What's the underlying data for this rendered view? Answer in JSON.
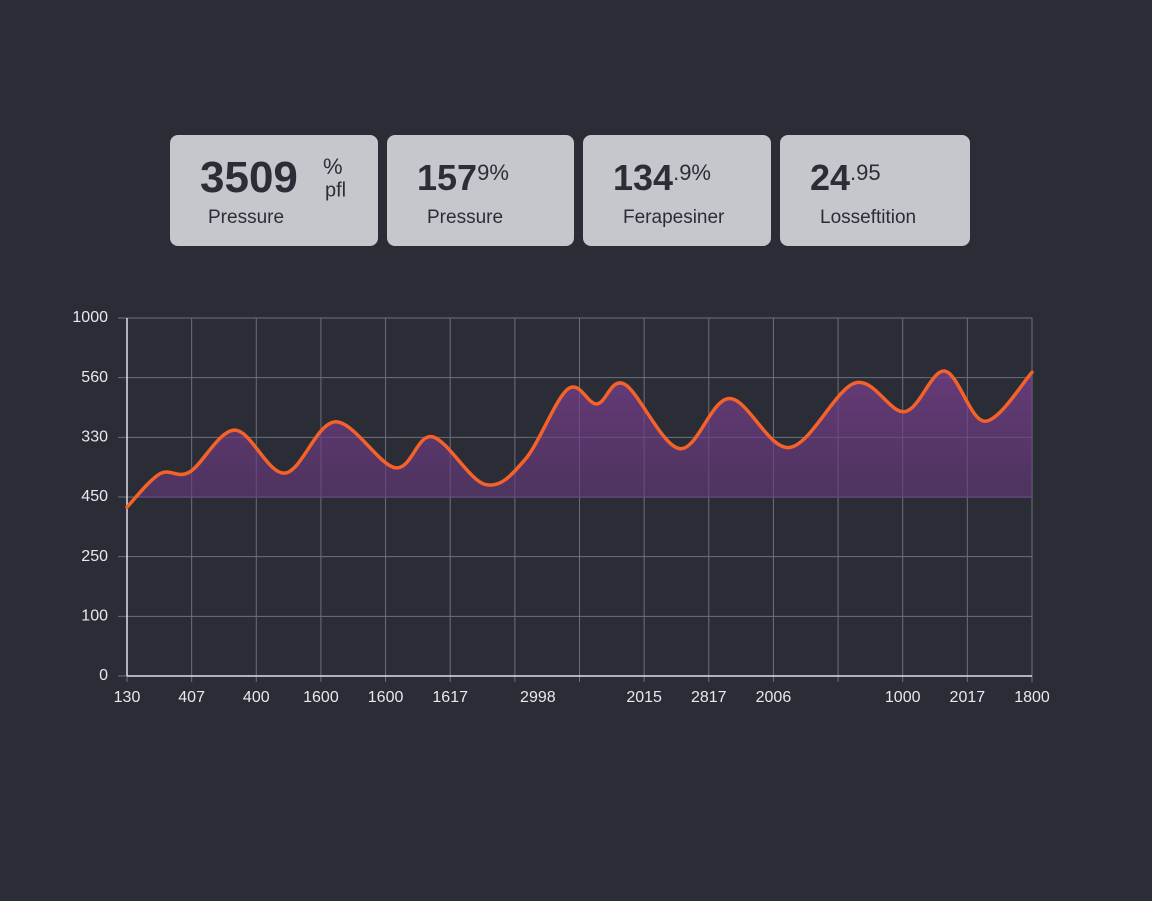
{
  "cards": [
    {
      "main": "3509",
      "sup": "%",
      "sub": "pfl",
      "label": "Pressure"
    },
    {
      "main": "157",
      "sup": "9%",
      "label": "Pressure"
    },
    {
      "main": "134",
      "sup": ".9%",
      "label": "Ferapesiner"
    },
    {
      "main": "24",
      "sup": ".95",
      "label": "Losseftition"
    }
  ],
  "chart_data": {
    "type": "area",
    "x": [
      0,
      0.51,
      0.97,
      1.67,
      2.44,
      3.22,
      4.15,
      4.72,
      5.54,
      6.16,
      6.82,
      7.27,
      7.7,
      8.55,
      9.32,
      10.25,
      11.26,
      12.03,
      12.65,
      13.27,
      14
    ],
    "series": [
      {
        "color": "#f4622a",
        "values": [
          2.83,
          3.39,
          3.42,
          4.12,
          3.4,
          4.26,
          3.49,
          4.01,
          3.21,
          3.63,
          4.81,
          4.56,
          4.89,
          3.81,
          4.65,
          3.83,
          4.91,
          4.43,
          5.11,
          4.27,
          5.09
        ]
      }
    ],
    "ylim": [
      0,
      6
    ],
    "yticks": [
      {
        "value": 6,
        "label": "1000"
      },
      {
        "value": 5,
        "label": "560"
      },
      {
        "value": 4,
        "label": "330"
      },
      {
        "value": 3,
        "label": "450"
      },
      {
        "value": 2,
        "label": "250"
      },
      {
        "value": 1,
        "label": "100"
      },
      {
        "value": 0,
        "label": "0"
      }
    ],
    "xlim": [
      0,
      14
    ],
    "xticks": [
      {
        "value": 0,
        "label": "130"
      },
      {
        "value": 1,
        "label": "407"
      },
      {
        "value": 2,
        "label": "400"
      },
      {
        "value": 3,
        "label": "1600"
      },
      {
        "value": 4,
        "label": "1600"
      },
      {
        "value": 5,
        "label": "1617"
      },
      {
        "value": 6,
        "label": "2998"
      },
      {
        "value": 7,
        "label": null
      },
      {
        "value": 8,
        "label": "2015"
      },
      {
        "value": 9,
        "label": "2817"
      },
      {
        "value": 10,
        "label": "2006"
      },
      {
        "value": 11,
        "label": null
      },
      {
        "value": 12,
        "label": "1000"
      },
      {
        "value": 13,
        "label": "2017"
      },
      {
        "value": 14,
        "label": "1800"
      }
    ],
    "grid": true
  }
}
